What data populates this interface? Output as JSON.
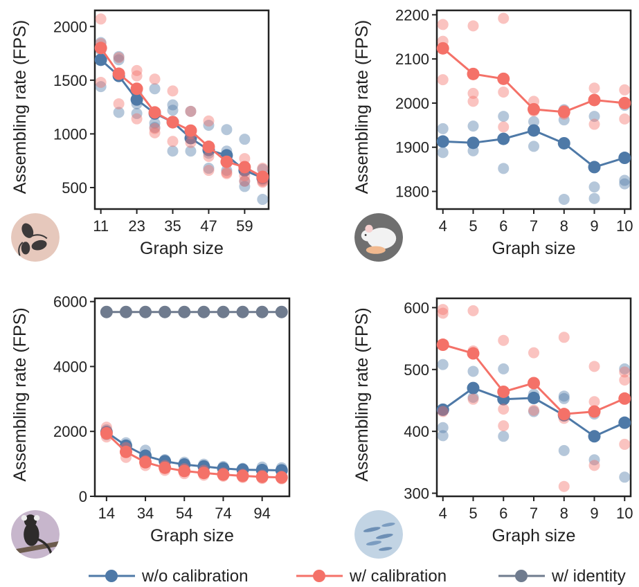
{
  "colors": {
    "wo": "#4e79a7",
    "w": "#f47168",
    "identity": "#6f7b8e",
    "axis": "#222222"
  },
  "legend": [
    {
      "key": "wo",
      "label": "w/o calibration"
    },
    {
      "key": "w",
      "label": "w/ calibration"
    },
    {
      "key": "identity",
      "label": "w/ identity"
    }
  ],
  "chart_data": [
    {
      "type": "line",
      "position": "top-left",
      "icon": "flies-icon",
      "xlabel": "Graph size",
      "ylabel": "Assembling rate (FPS)",
      "xlim": [
        9,
        67
      ],
      "ylim": [
        300,
        2150
      ],
      "xticks": [
        11,
        23,
        35,
        47,
        59
      ],
      "yticks": [
        500,
        1000,
        1500,
        2000
      ],
      "x": [
        11,
        17,
        23,
        29,
        35,
        41,
        47,
        53,
        59,
        65
      ],
      "series": [
        {
          "name": "w/o calibration",
          "key": "wo",
          "values": [
            1690,
            1540,
            1320,
            1190,
            1110,
            960,
            850,
            800,
            660,
            590
          ],
          "scatter": [
            [
              1850,
              1780,
              1440
            ],
            [
              1720,
              1690,
              1200
            ],
            [
              1380,
              1280,
              1190
            ],
            [
              1420,
              1100,
              1060
            ],
            [
              1270,
              1220,
              840
            ],
            [
              1210,
              970,
              840
            ],
            [
              1080,
              820,
              680
            ],
            [
              1040,
              840,
              660
            ],
            [
              950,
              560,
              510
            ],
            [
              670,
              570,
              390
            ]
          ]
        },
        {
          "name": "w/ calibration",
          "key": "w",
          "values": [
            1800,
            1560,
            1420,
            1200,
            1110,
            1030,
            880,
            740,
            690,
            600
          ],
          "scatter": [
            [
              2070,
              1840,
              1480
            ],
            [
              1710,
              1560,
              1280
            ],
            [
              1590,
              1540,
              1140
            ],
            [
              1510,
              1050,
              1010
            ],
            [
              1400,
              1100,
              930
            ],
            [
              1210,
              1000,
              920
            ],
            [
              1120,
              790,
              660
            ],
            [
              740,
              640,
              630
            ],
            [
              770,
              610,
              560
            ],
            [
              680,
              560,
              550
            ]
          ]
        }
      ]
    },
    {
      "type": "line",
      "position": "top-right",
      "icon": "mouse-icon",
      "xlabel": "Graph size",
      "ylabel": "Assembling rate (FPS)",
      "xlim": [
        3.8,
        10.2
      ],
      "ylim": [
        1760,
        2210
      ],
      "xticks": [
        4,
        5,
        6,
        7,
        8,
        9,
        10
      ],
      "yticks": [
        1800,
        1900,
        2000,
        2100,
        2200
      ],
      "x": [
        4,
        5,
        6,
        7,
        8,
        9,
        10
      ],
      "series": [
        {
          "name": "w/o calibration",
          "key": "wo",
          "values": [
            1913,
            1910,
            1919,
            1938,
            1909,
            1855,
            1876
          ],
          "scatter": [
            [
              1942,
              1888
            ],
            [
              1948,
              1892
            ],
            [
              1970,
              1852
            ],
            [
              1958,
              1902
            ],
            [
              1985,
              1962,
              1782
            ],
            [
              1970,
              1810,
              1784
            ],
            [
              1995,
              1825,
              1817
            ]
          ]
        },
        {
          "name": "w/ calibration",
          "key": "w",
          "values": [
            2124,
            2066,
            2055,
            1986,
            1980,
            2007,
            2000
          ],
          "scatter": [
            [
              2178,
              2140,
              2053
            ],
            [
              2175,
              2022,
              2004
            ],
            [
              2192,
              2025,
              1946
            ],
            [
              2004,
              1982
            ],
            [
              1983,
              1975
            ],
            [
              2034,
              1952
            ],
            [
              2030,
              1964
            ]
          ]
        }
      ]
    },
    {
      "type": "line",
      "position": "bottom-left",
      "icon": "marmoset-icon",
      "xlabel": "Graph size",
      "ylabel": "Assembling rate (FPS)",
      "xlim": [
        8,
        108
      ],
      "ylim": [
        0,
        6100
      ],
      "xticks": [
        14,
        34,
        54,
        74,
        94
      ],
      "yticks": [
        0,
        2000,
        4000,
        6000
      ],
      "x": [
        14,
        24,
        34,
        44,
        54,
        64,
        74,
        84,
        94,
        104
      ],
      "series": [
        {
          "name": "w/o calibration",
          "key": "wo",
          "values": [
            1980,
            1560,
            1250,
            1080,
            980,
            920,
            860,
            820,
            810,
            800
          ],
          "scatter": [
            [
              2050,
              1900
            ],
            [
              1650,
              1500
            ],
            [
              1420,
              1150
            ],
            [
              1130,
              1020
            ],
            [
              1050,
              920
            ],
            [
              990,
              860
            ],
            [
              920,
              800
            ],
            [
              860,
              780
            ],
            [
              900,
              760
            ],
            [
              880,
              760
            ]
          ]
        },
        {
          "name": "w/ calibration",
          "key": "w",
          "values": [
            1940,
            1370,
            1050,
            880,
            780,
            720,
            670,
            630,
            600,
            580
          ],
          "scatter": [
            [
              2130,
              1830
            ],
            [
              1500,
              1200
            ],
            [
              1100,
              950
            ],
            [
              950,
              800
            ],
            [
              850,
              700
            ],
            [
              800,
              650
            ],
            [
              720,
              620
            ],
            [
              680,
              580
            ],
            [
              650,
              550
            ],
            [
              620,
              540
            ]
          ]
        },
        {
          "name": "w/ identity",
          "key": "identity",
          "values": [
            5680,
            5680,
            5680,
            5680,
            5680,
            5680,
            5680,
            5680,
            5680,
            5680
          ],
          "scatter": []
        }
      ]
    },
    {
      "type": "line",
      "position": "bottom-right",
      "icon": "zebrafish-icon",
      "xlabel": "Graph size",
      "ylabel": "Assembling rate (FPS)",
      "xlim": [
        3.8,
        10.2
      ],
      "ylim": [
        295,
        615
      ],
      "xticks": [
        4,
        5,
        6,
        7,
        8,
        9,
        10
      ],
      "yticks": [
        300,
        400,
        500,
        600
      ],
      "x": [
        4,
        5,
        6,
        7,
        8,
        9,
        10
      ],
      "series": [
        {
          "name": "w/o calibration",
          "key": "wo",
          "values": [
            435,
            470,
            452,
            454,
            426,
            392,
            414
          ],
          "scatter": [
            [
              508,
              406,
              393
            ],
            [
              497,
              455
            ],
            [
              501,
              392
            ],
            [
              460,
              432
            ],
            [
              457,
              453,
              369
            ],
            [
              428,
              354
            ],
            [
              501,
              326
            ]
          ]
        },
        {
          "name": "w/ calibration",
          "key": "w",
          "values": [
            540,
            526,
            464,
            478,
            428,
            432,
            453
          ],
          "scatter": [
            [
              597,
              591,
              432
            ],
            [
              595,
              530,
              452
            ],
            [
              547,
              436,
              409
            ],
            [
              527,
              434
            ],
            [
              552,
              421,
              311
            ],
            [
              505,
              448,
              345
            ],
            [
              496,
              483,
              379
            ]
          ]
        }
      ]
    }
  ]
}
